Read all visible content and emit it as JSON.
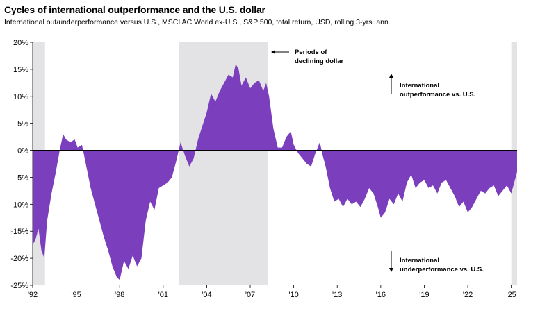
{
  "chart_data": {
    "type": "area",
    "title": "Cycles of international outperformance and the U.S. dollar",
    "subtitle": "International out/underperformance versus U.S., MSCI AC World ex-U.S., S&P 500, total return, USD, rolling 3-yrs. ann.",
    "xlabel": "",
    "ylabel": "",
    "ylim": [
      -25,
      20
    ],
    "xlim": [
      1992.0,
      2025.4
    ],
    "y_ticks": [
      20,
      15,
      10,
      5,
      0,
      -5,
      -10,
      -15,
      -20,
      -25
    ],
    "y_tick_labels": [
      "20%",
      "15%",
      "10%",
      "5%",
      "0%",
      "-5%",
      "-10%",
      "-15%",
      "-20%",
      "-25%"
    ],
    "x_ticks": [
      1992,
      1995,
      1998,
      2001,
      2004,
      2007,
      2010,
      2013,
      2016,
      2019,
      2022,
      2025
    ],
    "x_tick_labels": [
      "'92",
      "'95",
      "'98",
      "'01",
      "'04",
      "'07",
      "'10",
      "'13",
      "'16",
      "'19",
      "'22",
      "'25"
    ],
    "area_color": "#7b3fbe",
    "shade_color": "#e3e3e5",
    "shaded_periods": [
      [
        1992.0,
        1992.85
      ],
      [
        2002.1,
        2008.2
      ],
      [
        2025.0,
        2025.4
      ]
    ],
    "shaded_label": "Periods of declining dollar",
    "annotations": {
      "declining_line1": "Periods of",
      "declining_line2": "declining dollar",
      "out_line1": "International",
      "out_line2": "outperformance vs. U.S.",
      "under_line1": "International",
      "under_line2": "underperformance vs. U.S."
    },
    "x": [
      1992.0,
      1992.2,
      1992.4,
      1992.6,
      1992.8,
      1993.0,
      1993.3,
      1993.6,
      1993.9,
      1994.1,
      1994.3,
      1994.6,
      1994.9,
      1995.1,
      1995.4,
      1995.7,
      1996.0,
      1996.3,
      1996.6,
      1996.9,
      1997.2,
      1997.5,
      1997.8,
      1998.0,
      1998.3,
      1998.6,
      1998.9,
      1999.2,
      1999.5,
      1999.8,
      2000.1,
      2000.4,
      2000.7,
      2001.0,
      2001.3,
      2001.6,
      2001.9,
      2002.2,
      2002.5,
      2002.8,
      2003.1,
      2003.4,
      2003.7,
      2004.0,
      2004.3,
      2004.6,
      2004.9,
      2005.2,
      2005.5,
      2005.8,
      2006.0,
      2006.2,
      2006.4,
      2006.7,
      2007.0,
      2007.3,
      2007.6,
      2007.9,
      2008.1,
      2008.3,
      2008.6,
      2008.9,
      2009.2,
      2009.5,
      2009.8,
      2010.0,
      2010.3,
      2010.6,
      2010.9,
      2011.2,
      2011.5,
      2011.8,
      2012.0,
      2012.2,
      2012.5,
      2012.8,
      2013.1,
      2013.4,
      2013.7,
      2014.0,
      2014.3,
      2014.6,
      2014.9,
      2015.2,
      2015.5,
      2015.8,
      2016.0,
      2016.3,
      2016.6,
      2016.9,
      2017.2,
      2017.5,
      2017.8,
      2018.1,
      2018.4,
      2018.7,
      2019.0,
      2019.3,
      2019.6,
      2019.9,
      2020.2,
      2020.5,
      2020.8,
      2021.1,
      2021.4,
      2021.7,
      2022.0,
      2022.3,
      2022.6,
      2022.9,
      2023.2,
      2023.5,
      2023.8,
      2024.1,
      2024.4,
      2024.7,
      2025.0,
      2025.2,
      2025.4
    ],
    "values": [
      -17.5,
      -16.5,
      -14.5,
      -18.5,
      -20.0,
      -13.0,
      -8.0,
      -4.0,
      0.5,
      3.0,
      2.0,
      1.5,
      2.0,
      0.5,
      1.0,
      -3.0,
      -7.0,
      -10.0,
      -13.0,
      -16.0,
      -18.5,
      -21.5,
      -23.5,
      -24.0,
      -20.5,
      -22.0,
      -19.5,
      -21.5,
      -20.0,
      -13.0,
      -9.5,
      -11.0,
      -7.0,
      -6.5,
      -6.0,
      -5.0,
      -2.0,
      1.5,
      -1.0,
      -3.0,
      -1.5,
      2.0,
      4.5,
      7.0,
      10.5,
      9.0,
      11.0,
      12.5,
      14.0,
      13.5,
      16.0,
      15.0,
      12.0,
      13.5,
      11.5,
      12.5,
      13.0,
      11.0,
      12.5,
      10.0,
      4.0,
      0.5,
      0.5,
      2.5,
      3.5,
      1.0,
      -0.5,
      -1.5,
      -2.5,
      -3.0,
      -0.5,
      1.5,
      -1.0,
      -3.0,
      -7.0,
      -9.5,
      -9.0,
      -10.5,
      -9.0,
      -10.0,
      -9.5,
      -10.5,
      -9.0,
      -7.0,
      -8.0,
      -10.5,
      -12.5,
      -11.5,
      -9.0,
      -10.0,
      -8.0,
      -9.5,
      -6.0,
      -4.5,
      -7.0,
      -6.0,
      -5.5,
      -7.0,
      -6.5,
      -8.0,
      -6.0,
      -5.5,
      -7.0,
      -8.5,
      -10.5,
      -9.5,
      -11.5,
      -10.5,
      -9.0,
      -7.5,
      -8.0,
      -7.0,
      -6.5,
      -8.5,
      -7.5,
      -6.5,
      -8.0,
      -6.0,
      -4.0
    ]
  }
}
